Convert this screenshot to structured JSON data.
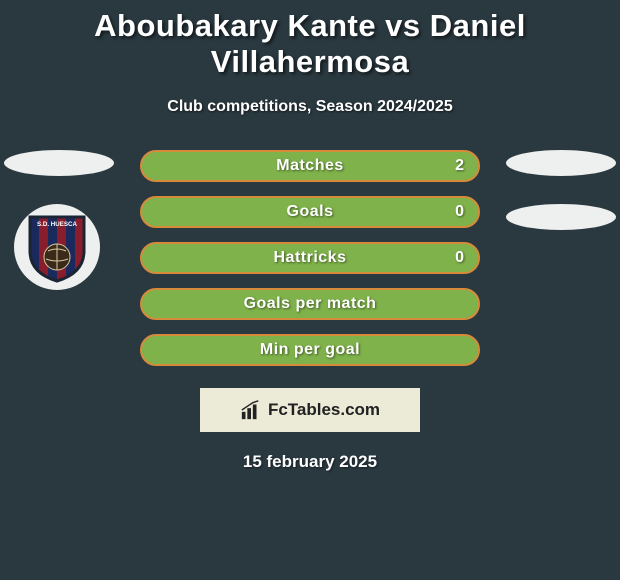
{
  "title": "Aboubakary Kante vs Daniel Villahermosa",
  "title_fontsize": 31,
  "title_color": "#ffffff",
  "subtitle": "Club competitions, Season 2024/2025",
  "subtitle_fontsize": 16,
  "background_color": "#2a3940",
  "bars": [
    {
      "label": "Matches",
      "value": "2"
    },
    {
      "label": "Goals",
      "value": "0"
    },
    {
      "label": "Hattricks",
      "value": "0"
    },
    {
      "label": "Goals per match",
      "value": ""
    },
    {
      "label": "Min per goal",
      "value": ""
    }
  ],
  "bar_style": {
    "fill_color": "#7fb24a",
    "border_color": "#d68b3a",
    "border_width": 2,
    "label_fontsize": 16,
    "label_color": "#ffffff",
    "value_fontsize": 16
  },
  "side_oval_color": "#eef0ef",
  "logo_box": {
    "background": "#ecebd8",
    "text": "FcTables.com",
    "text_color": "#222222"
  },
  "date": "15 february 2025",
  "date_fontsize": 17,
  "badge": {
    "stripes": [
      "#1b2a5c",
      "#8a1d2c"
    ],
    "ball": "#0a0a0a",
    "outline": "#1a2433",
    "text": "S.D. HUESCA"
  }
}
